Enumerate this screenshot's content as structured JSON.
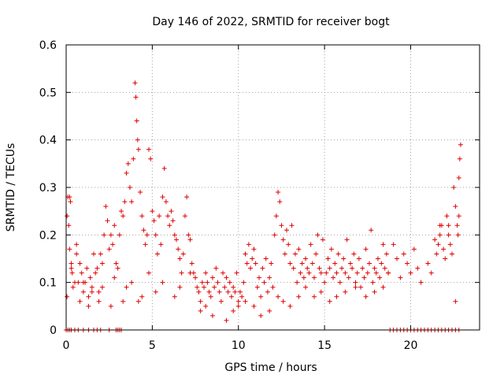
{
  "chart_data": {
    "type": "scatter",
    "title": "Day 146 of 2022, SRMTID for receiver bogt",
    "xlabel": "GPS time / hours",
    "ylabel": "SRMTID / TECUs",
    "xlim": [
      0,
      24
    ],
    "ylim": [
      0,
      0.6
    ],
    "xticks": [
      0,
      5,
      10,
      15,
      20
    ],
    "xtick_labels": [
      "0",
      "5",
      "10",
      "15",
      "20"
    ],
    "yticks": [
      0,
      0.1,
      0.2,
      0.3,
      0.4,
      0.5,
      0.6
    ],
    "ytick_labels": [
      "0",
      "0.1",
      "0.2",
      "0.3",
      "0.4",
      "0.5",
      "0.6"
    ],
    "grid": true,
    "marker": "plus",
    "marker_color": "#e00000",
    "series": [
      {
        "name": "SRMTID",
        "x": [
          0.05,
          0.1,
          0.15,
          0.2,
          0.25,
          0.3,
          0.35,
          0.4,
          0.5,
          0.6,
          0.7,
          0.8,
          0.9,
          1.0,
          1.1,
          1.2,
          1.3,
          1.4,
          1.5,
          1.6,
          1.7,
          1.8,
          1.9,
          2.0,
          2.1,
          2.2,
          2.3,
          2.4,
          2.5,
          2.6,
          2.7,
          2.8,
          2.9,
          3.0,
          3.1,
          3.2,
          3.3,
          3.4,
          3.5,
          3.6,
          3.7,
          3.8,
          3.9,
          4.0,
          4.05,
          4.1,
          4.15,
          4.2,
          4.3,
          4.4,
          4.5,
          4.6,
          4.7,
          4.8,
          4.9,
          5.0,
          5.1,
          5.2,
          5.3,
          5.4,
          5.5,
          5.6,
          5.7,
          5.8,
          5.9,
          6.0,
          6.1,
          6.2,
          6.3,
          6.4,
          6.5,
          6.6,
          6.7,
          6.8,
          6.9,
          7.0,
          7.1,
          7.2,
          7.3,
          7.4,
          7.5,
          7.6,
          7.7,
          7.8,
          7.9,
          8.0,
          8.1,
          8.2,
          8.3,
          8.4,
          8.5,
          8.6,
          8.7,
          8.8,
          8.9,
          9.0,
          9.1,
          9.2,
          9.3,
          9.4,
          9.5,
          9.6,
          9.7,
          9.8,
          9.9,
          10.0,
          10.1,
          10.2,
          10.3,
          10.4,
          10.5,
          10.6,
          10.7,
          10.8,
          10.9,
          11.0,
          11.1,
          11.2,
          11.3,
          11.4,
          11.5,
          11.6,
          11.7,
          11.8,
          11.9,
          12.0,
          12.1,
          12.2,
          12.3,
          12.4,
          12.5,
          12.6,
          12.7,
          12.8,
          12.9,
          13.0,
          13.1,
          13.2,
          13.3,
          13.4,
          13.5,
          13.6,
          13.7,
          13.8,
          13.9,
          14.0,
          14.1,
          14.2,
          14.3,
          14.4,
          14.5,
          14.6,
          14.7,
          14.8,
          14.9,
          15.0,
          15.1,
          15.2,
          15.3,
          15.4,
          15.5,
          15.6,
          15.7,
          15.8,
          15.9,
          16.0,
          16.1,
          16.2,
          16.3,
          16.4,
          16.5,
          16.6,
          16.7,
          16.8,
          16.9,
          17.0,
          17.1,
          17.2,
          17.3,
          17.4,
          17.5,
          17.6,
          17.7,
          17.8,
          17.9,
          18.0,
          18.1,
          18.2,
          18.3,
          18.4,
          18.5,
          18.6,
          18.7,
          19.0,
          19.2,
          19.4,
          19.6,
          19.8,
          20.0,
          20.2,
          20.4,
          20.6,
          21.0,
          21.2,
          21.4,
          21.5,
          21.6,
          21.7,
          21.8,
          21.9,
          22.0,
          22.1,
          22.2,
          22.3,
          22.4,
          22.5,
          22.6,
          22.7,
          22.75,
          22.8,
          22.85,
          22.9,
          0.05,
          0.2,
          0.3,
          0.6,
          0.8,
          1.0,
          1.3,
          1.5,
          1.9,
          2.1,
          2.6,
          2.8,
          3.3,
          3.5,
          3.8,
          4.2,
          4.4,
          4.8,
          5.2,
          5.6,
          6.3,
          6.6,
          7.2,
          7.8,
          8.1,
          8.5,
          9.3,
          9.7,
          10.0,
          10.4,
          10.9,
          11.3,
          11.8,
          12.3,
          12.6,
          13.0,
          13.5,
          13.9,
          14.4,
          14.8,
          15.3,
          15.7,
          16.2,
          16.8,
          17.4,
          17.9,
          18.4,
          18.7,
          21.7,
          22.2,
          22.6,
          22.8,
          0.0,
          0.1,
          0.2,
          0.3,
          0.5,
          0.7,
          1.0,
          1.3,
          1.6,
          1.8,
          2.0,
          2.5,
          2.9,
          3.0,
          3.1,
          3.2,
          18.8,
          19.0,
          19.2,
          19.4,
          19.6,
          19.8,
          20.0,
          20.2,
          20.4,
          20.6,
          20.8,
          21.0,
          21.2,
          21.4,
          21.6,
          21.8,
          22.0,
          22.2,
          22.4,
          22.6,
          22.8
        ],
        "y": [
          0.07,
          0.28,
          0.22,
          0.17,
          0.27,
          0.14,
          0.12,
          0.09,
          0.1,
          0.16,
          0.1,
          0.14,
          0.12,
          0.08,
          0.1,
          0.13,
          0.07,
          0.11,
          0.09,
          0.16,
          0.12,
          0.13,
          0.08,
          0.16,
          0.14,
          0.2,
          0.26,
          0.23,
          0.17,
          0.2,
          0.18,
          0.22,
          0.14,
          0.13,
          0.2,
          0.25,
          0.24,
          0.27,
          0.33,
          0.35,
          0.3,
          0.27,
          0.36,
          0.52,
          0.49,
          0.44,
          0.4,
          0.38,
          0.29,
          0.24,
          0.21,
          0.18,
          0.2,
          0.38,
          0.36,
          0.25,
          0.23,
          0.2,
          0.16,
          0.24,
          0.18,
          0.28,
          0.34,
          0.27,
          0.24,
          0.22,
          0.25,
          0.23,
          0.2,
          0.19,
          0.17,
          0.15,
          0.12,
          0.16,
          0.24,
          0.28,
          0.2,
          0.19,
          0.14,
          0.12,
          0.11,
          0.09,
          0.08,
          0.06,
          0.1,
          0.09,
          0.12,
          0.1,
          0.08,
          0.07,
          0.11,
          0.09,
          0.13,
          0.1,
          0.08,
          0.06,
          0.12,
          0.09,
          0.11,
          0.08,
          0.1,
          0.07,
          0.09,
          0.08,
          0.12,
          0.06,
          0.08,
          0.07,
          0.1,
          0.16,
          0.14,
          0.18,
          0.13,
          0.15,
          0.17,
          0.14,
          0.09,
          0.11,
          0.07,
          0.13,
          0.1,
          0.15,
          0.08,
          0.11,
          0.14,
          0.09,
          0.2,
          0.24,
          0.29,
          0.27,
          0.22,
          0.19,
          0.16,
          0.21,
          0.18,
          0.14,
          0.22,
          0.13,
          0.16,
          0.1,
          0.17,
          0.12,
          0.14,
          0.11,
          0.15,
          0.13,
          0.12,
          0.18,
          0.14,
          0.11,
          0.16,
          0.2,
          0.13,
          0.12,
          0.19,
          0.1,
          0.12,
          0.15,
          0.13,
          0.17,
          0.11,
          0.14,
          0.12,
          0.16,
          0.1,
          0.13,
          0.15,
          0.12,
          0.19,
          0.11,
          0.14,
          0.13,
          0.16,
          0.1,
          0.12,
          0.15,
          0.09,
          0.13,
          0.11,
          0.17,
          0.12,
          0.14,
          0.21,
          0.1,
          0.13,
          0.12,
          0.15,
          0.11,
          0.14,
          0.18,
          0.13,
          0.16,
          0.12,
          0.18,
          0.15,
          0.11,
          0.16,
          0.14,
          0.12,
          0.17,
          0.13,
          0.1,
          0.14,
          0.12,
          0.19,
          0.16,
          0.18,
          0.2,
          0.22,
          0.17,
          0.15,
          0.24,
          0.2,
          0.18,
          0.16,
          0.3,
          0.26,
          0.22,
          0.2,
          0.32,
          0.36,
          0.39,
          0.24,
          0.28,
          0.13,
          0.18,
          0.06,
          0.1,
          0.05,
          0.08,
          0.06,
          0.09,
          0.05,
          0.11,
          0.06,
          0.09,
          0.1,
          0.06,
          0.07,
          0.12,
          0.08,
          0.1,
          0.07,
          0.09,
          0.12,
          0.04,
          0.05,
          0.03,
          0.02,
          0.04,
          0.05,
          0.06,
          0.05,
          0.03,
          0.04,
          0.07,
          0.06,
          0.05,
          0.07,
          0.09,
          0.07,
          0.08,
          0.06,
          0.07,
          0.08,
          0.09,
          0.07,
          0.08,
          0.09,
          0.12,
          0.22,
          0.22,
          0.06,
          0.24,
          0,
          0,
          0,
          0,
          0,
          0,
          0,
          0,
          0,
          0,
          0,
          0,
          0,
          0,
          0,
          0,
          0,
          0,
          0,
          0,
          0,
          0,
          0,
          0,
          0,
          0,
          0,
          0,
          0,
          0,
          0,
          0,
          0,
          0,
          0,
          0,
          0
        ]
      }
    ]
  }
}
